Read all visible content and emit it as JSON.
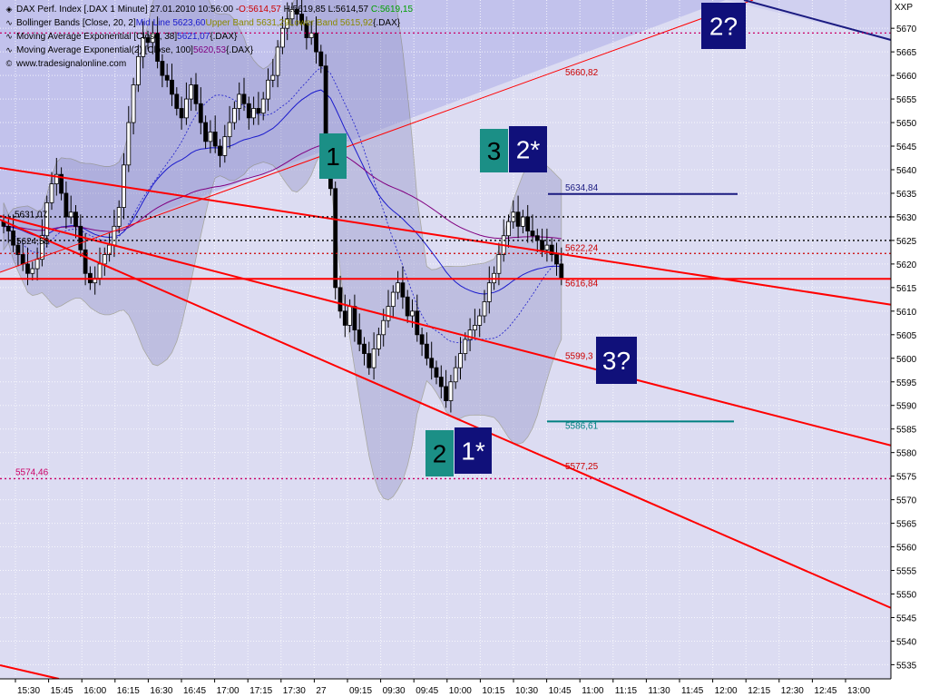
{
  "header": {
    "title_prefix": "DAX Perf. Index [.DAX  1 Minute] 27.01.2010 10:56:00 - ",
    "open": "O:5614,57",
    "high": "H:5619,85",
    "low": "L:5614,57",
    "close": "C:5619,15",
    "close_color": "#00a000",
    "open_color": "#cc0000"
  },
  "legend": [
    {
      "icon": "line-icon",
      "label": "Bollinger Bands [Close, 20, 2]",
      "parts": [
        {
          "text": "Mid Line 5623,60",
          "color": "#1a1acc"
        },
        {
          "text": "Upper Band 5631,29",
          "color": "#8a8a00"
        },
        {
          "text": "Lower Band 5615,92",
          "color": "#8a8a00"
        },
        {
          "text": "{.DAX}",
          "color": "#000000"
        }
      ]
    },
    {
      "icon": "line-icon",
      "label": "Moving Average Exponential [Close, 38]",
      "parts": [
        {
          "text": "5621,07",
          "color": "#1a1acc"
        },
        {
          "text": "{.DAX}",
          "color": "#000000"
        }
      ]
    },
    {
      "icon": "line-icon",
      "label": "Moving Average Exponential(2) [Close, 100]",
      "parts": [
        {
          "text": "5620,53",
          "color": "#800080"
        },
        {
          "text": "{.DAX}",
          "color": "#000000"
        }
      ]
    },
    {
      "icon": "copyright-icon",
      "label": "www.tradesignalonline.com",
      "parts": []
    }
  ],
  "corner_label": "XXP",
  "chart_data": {
    "type": "candlestick",
    "y_ticks": [
      5535,
      5540,
      5545,
      5550,
      5555,
      5560,
      5565,
      5570,
      5575,
      5580,
      5585,
      5590,
      5595,
      5600,
      5605,
      5610,
      5615,
      5620,
      5625,
      5630,
      5635,
      5640,
      5645,
      5650,
      5655,
      5660,
      5665,
      5670
    ],
    "ylim": [
      5532,
      5676
    ],
    "x_ticks": [
      "15:30",
      "15:45",
      "16:00",
      "16:15",
      "16:30",
      "16:45",
      "17:00",
      "17:15",
      "17:30",
      "27",
      "09:15",
      "09:30",
      "09:45",
      "10:00",
      "10:15",
      "10:30",
      "10:45",
      "11:00",
      "11:15",
      "11:30",
      "11:45",
      "12:00",
      "12:15",
      "12:30",
      "12:45",
      "13:00"
    ],
    "price_closes": [
      5628,
      5627,
      5624,
      5622,
      5620,
      5618,
      5619,
      5621,
      5626,
      5633,
      5637,
      5639,
      5635,
      5630,
      5631,
      5628,
      5623,
      5618,
      5616,
      5617,
      5620,
      5622,
      5624,
      5628,
      5632,
      5641,
      5650,
      5658,
      5664,
      5668,
      5667,
      5669,
      5663,
      5660,
      5659,
      5656,
      5653,
      5651,
      5655,
      5658,
      5654,
      5650,
      5646,
      5648,
      5645,
      5643,
      5647,
      5650,
      5653,
      5656,
      5654,
      5651,
      5653,
      5652,
      5655,
      5659,
      5660,
      5666,
      5670,
      5672,
      5674,
      5673,
      5671,
      5668,
      5669,
      5665,
      5662,
      5642,
      5636,
      5615,
      5610,
      5607,
      5611,
      5606,
      5603,
      5601,
      5598,
      5602,
      5605,
      5608,
      5611,
      5614,
      5616,
      5613,
      5609,
      5610,
      5605,
      5603,
      5600,
      5598,
      5596,
      5594,
      5591,
      5595,
      5598,
      5601,
      5604,
      5606,
      5607,
      5609,
      5612,
      5616,
      5618,
      5622,
      5626,
      5629,
      5631,
      5628,
      5630,
      5627,
      5626,
      5625,
      5623,
      5624,
      5622,
      5620,
      5617
    ],
    "horizontal_levels": [
      {
        "label": "5634,84",
        "value": 5634.84,
        "color": "#1a1a80",
        "style": "solid",
        "text_color": "#1a1a80"
      },
      {
        "label": "5622,24",
        "value": 5622.24,
        "color": "#cc0000",
        "style": "dotted",
        "text_color": "#cc0000"
      },
      {
        "label": "5616,84",
        "value": 5616.84,
        "color": "#ff0000",
        "style": "solid-thick",
        "text_color": "#cc0000"
      },
      {
        "label": "5599,3",
        "value": 5599.3,
        "color": "#cc0000",
        "style": "none",
        "text_color": "#cc0000"
      },
      {
        "label": "5586,61",
        "value": 5586.61,
        "color": "#008080",
        "style": "solid",
        "text_color": "#008080"
      },
      {
        "label": "5577,25",
        "value": 5577.25,
        "color": "#cc0000",
        "style": "none",
        "text_color": "#cc0000"
      },
      {
        "label": "5574,46",
        "value": 5574.46,
        "color": "#cc0066",
        "style": "dotted",
        "text_color": "#cc0066"
      },
      {
        "label": "5660,82",
        "value": 5660.82,
        "color": "#cc0000",
        "style": "none",
        "text_color": "#cc0000"
      },
      {
        "label": "5624,58",
        "value": 5624.58,
        "color": "#000000",
        "style": "none",
        "text_color": "#000000"
      },
      {
        "label": "5631,07",
        "value": 5631.07,
        "color": "#000000",
        "style": "none",
        "text_color": "#000000"
      },
      {
        "label": "5669",
        "value": 5669,
        "color": "#cc0066",
        "style": "dotted",
        "text_color": "#cc0066"
      },
      {
        "label": "5630",
        "value": 5630,
        "color": "#000000",
        "style": "dotted",
        "text_color": "#000000"
      },
      {
        "label": "5625",
        "value": 5625,
        "color": "#000000",
        "style": "dotted",
        "text_color": "#000000"
      }
    ],
    "wave_labels": [
      {
        "text": "1",
        "color": "#1b8f86",
        "text_color": "#000000"
      },
      {
        "text": "3",
        "color": "#1b8f86",
        "text_color": "#000000"
      },
      {
        "text": "2*",
        "color": "#10107a",
        "text_color": "#ffffff"
      },
      {
        "text": "2",
        "color": "#1b8f86",
        "text_color": "#000000"
      },
      {
        "text": "1*",
        "color": "#10107a",
        "text_color": "#ffffff"
      },
      {
        "text": "3?",
        "color": "#10107a",
        "text_color": "#ffffff"
      },
      {
        "text": "2?",
        "color": "#10107a",
        "text_color": "#ffffff"
      }
    ]
  }
}
